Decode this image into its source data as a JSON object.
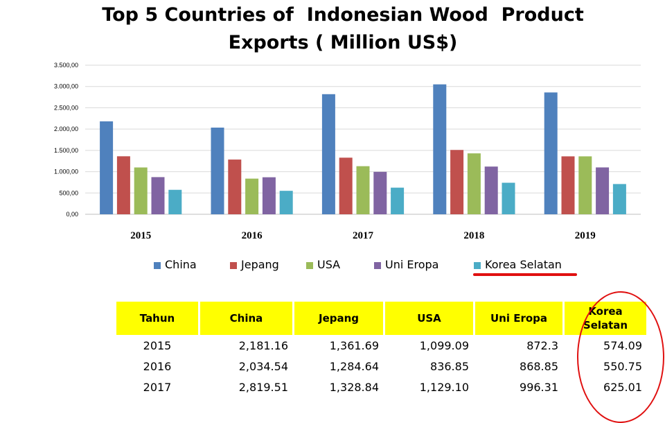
{
  "title_lines": [
    "Top 5 Countries of  Indonesian Wood  Product",
    "Exports ( Million US$)"
  ],
  "colors": {
    "China": "#4f81bd",
    "Jepang": "#c0504d",
    "USA": "#9bbb59",
    "Uni Eropa": "#8064a2",
    "Korea Selatan": "#4bacc6",
    "highlight": "#e01010",
    "table_header": "#ffff00"
  },
  "chart_data": {
    "type": "bar",
    "title": "Top 5 Countries of  Indonesian Wood  Product Exports ( Million US$)",
    "categories": [
      "2015",
      "2016",
      "2017",
      "2018",
      "2019"
    ],
    "series": [
      {
        "name": "China",
        "values": [
          2181.16,
          2034.54,
          2819.51,
          3050,
          2860
        ]
      },
      {
        "name": "Jepang",
        "values": [
          1361.69,
          1284.64,
          1328.84,
          1510,
          1360
        ]
      },
      {
        "name": "USA",
        "values": [
          1099.09,
          836.85,
          1129.1,
          1430,
          1360
        ]
      },
      {
        "name": "Uni Eropa",
        "values": [
          872.3,
          868.85,
          996.31,
          1120,
          1100
        ]
      },
      {
        "name": "Korea Selatan",
        "values": [
          574.09,
          550.75,
          625.01,
          740,
          710
        ]
      }
    ],
    "ylim": [
      0,
      3500
    ],
    "yticks": [
      "0,00",
      "500,00",
      "1.000,00",
      "1.500,00",
      "2.000,00",
      "2.500,00",
      "3.000,00",
      "3.500,00"
    ],
    "grid": true,
    "legend_position": "bottom"
  },
  "table": {
    "headers": [
      "Tahun",
      "China",
      "Jepang",
      "USA",
      "Uni Eropa",
      "Korea Selatan"
    ],
    "rows": [
      [
        "2015",
        "2,181.16",
        "1,361.69",
        "1,099.09",
        "872.3",
        "574.09"
      ],
      [
        "2016",
        "2,034.54",
        "1,284.64",
        "836.85",
        "868.85",
        "550.75"
      ],
      [
        "2017",
        "2,819.51",
        "1,328.84",
        "1,129.10",
        "996.31",
        "625.01"
      ]
    ]
  }
}
